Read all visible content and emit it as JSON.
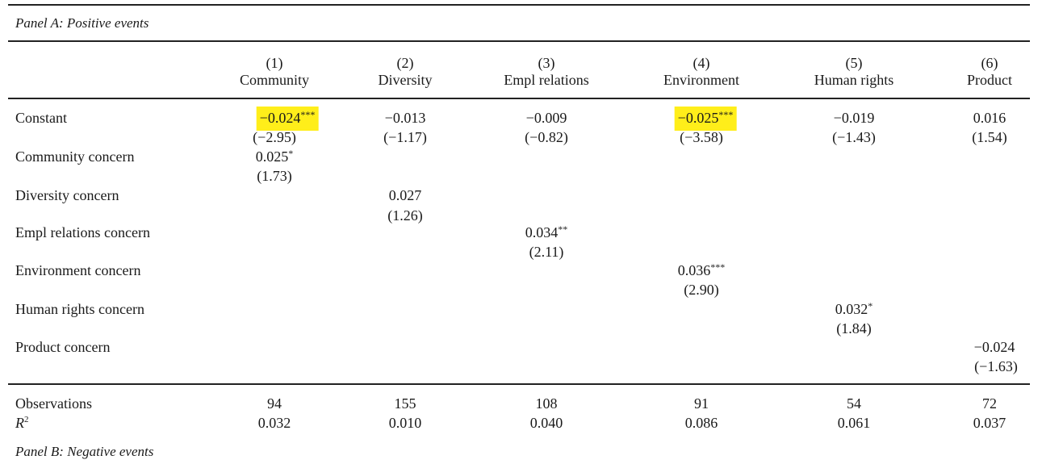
{
  "table": {
    "panel_a_title": "Panel A: Positive events",
    "panel_b_title": "Panel B: Negative events",
    "columns": [
      {
        "num": "(1)",
        "label": "Community"
      },
      {
        "num": "(2)",
        "label": "Diversity"
      },
      {
        "num": "(3)",
        "label": "Empl relations"
      },
      {
        "num": "(4)",
        "label": "Environment"
      },
      {
        "num": "(5)",
        "label": "Human rights"
      },
      {
        "num": "(6)",
        "label": "Product"
      }
    ],
    "constant": {
      "label": "Constant",
      "coefs": [
        {
          "value": "−0.024",
          "stars": "***",
          "highlight": true
        },
        {
          "value": "−0.013",
          "stars": "",
          "highlight": false
        },
        {
          "value": "−0.009",
          "stars": "",
          "highlight": false
        },
        {
          "value": "−0.025",
          "stars": "***",
          "highlight": true
        },
        {
          "value": "−0.019",
          "stars": "",
          "highlight": false
        },
        {
          "value": "0.016",
          "stars": "",
          "highlight": false
        }
      ],
      "tstats": [
        "(−2.95)",
        "(−1.17)",
        "(−0.82)",
        "(−3.58)",
        "(−1.43)",
        "(1.54)"
      ]
    },
    "concerns": [
      {
        "label": "Community concern",
        "value": "0.025",
        "stars": "*",
        "tstat": "(1.73)"
      },
      {
        "label": "Diversity concern",
        "value": "0.027",
        "stars": "",
        "tstat": "(1.26)"
      },
      {
        "label": "Empl relations concern",
        "value": "0.034",
        "stars": "**",
        "tstat": "(2.11)"
      },
      {
        "label": "Environment concern",
        "value": "0.036",
        "stars": "***",
        "tstat": "(2.90)"
      },
      {
        "label": "Human rights concern",
        "value": "0.032",
        "stars": "*",
        "tstat": "(1.84)"
      },
      {
        "label": "Product concern",
        "value": "−0.024",
        "stars": "",
        "tstat": "(−1.63)"
      }
    ],
    "observations": {
      "label": "Observations",
      "values": [
        "94",
        "155",
        "108",
        "91",
        "54",
        "72"
      ]
    },
    "r2": {
      "label": "R",
      "sup": "2",
      "values": [
        "0.032",
        "0.010",
        "0.040",
        "0.086",
        "0.061",
        "0.037"
      ]
    }
  },
  "colors": {
    "highlight": "#ffee1a",
    "text": "#1a1a1a",
    "rule": "#222222"
  }
}
